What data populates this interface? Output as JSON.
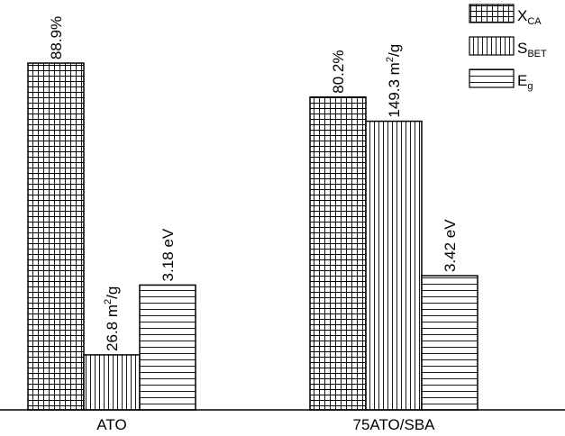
{
  "chart_data": {
    "type": "bar",
    "categories": [
      "ATO",
      "75ATO/SBA"
    ],
    "series": [
      {
        "name": "X",
        "name_sub": "CA",
        "pattern": "grid",
        "heights": [
          88.9,
          80.2
        ],
        "labels": [
          {
            "main": "88.9%",
            "sup": "",
            "unit_rest": ""
          },
          {
            "main": "80.2%",
            "sup": "",
            "unit_rest": ""
          }
        ]
      },
      {
        "name": "S",
        "name_sub": "BET",
        "pattern": "vertical",
        "heights": [
          14.1,
          74.0
        ],
        "labels": [
          {
            "main": "26.8 m",
            "sup": "2",
            "unit_rest": "/g"
          },
          {
            "main": "149.3 m",
            "sup": "2",
            "unit_rest": "/g"
          }
        ]
      },
      {
        "name": "E",
        "name_sub": "g",
        "pattern": "horizontal",
        "heights": [
          32.0,
          34.4
        ],
        "labels": [
          {
            "main": "3.18 eV",
            "sup": "",
            "unit_rest": ""
          },
          {
            "main": "3.42 eV",
            "sup": "",
            "unit_rest": ""
          }
        ]
      }
    ],
    "ylim": [
      0,
      100
    ],
    "legend": "top-right",
    "grid": false,
    "colors": {
      "stroke": "#000000",
      "background": "#ffffff"
    }
  }
}
